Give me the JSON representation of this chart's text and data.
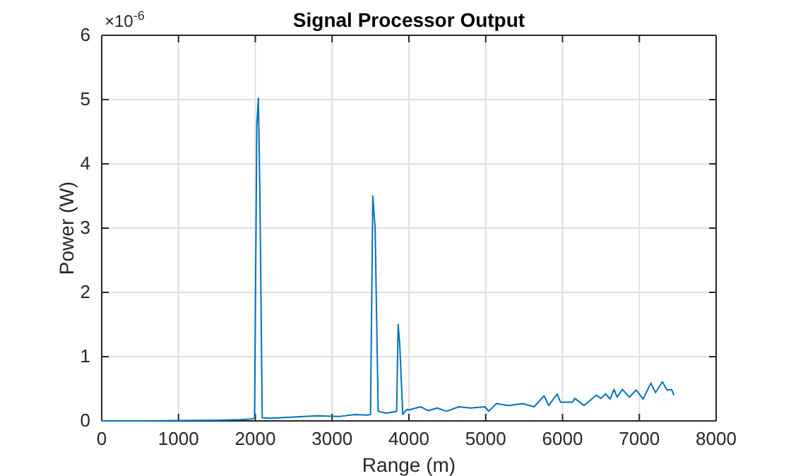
{
  "chart_data": {
    "type": "line",
    "title": "Signal Processor Output",
    "xlabel": "Range (m)",
    "ylabel": "Power (W)",
    "annotations": [
      "×10$^{-6}$"
    ],
    "xlim": [
      0,
      8000
    ],
    "xticks": [
      0,
      1000,
      2000,
      3000,
      4000,
      5000,
      6000,
      7000,
      8000
    ],
    "ylim": [
      0,
      6
    ],
    "yticks": [
      0,
      1,
      2,
      3,
      4,
      5,
      6
    ],
    "grid": true,
    "x": [
      0,
      500,
      1000,
      1500,
      1800,
      1950,
      1990,
      2020,
      2040,
      2060,
      2090,
      2200,
      2500,
      2800,
      3100,
      3300,
      3450,
      3500,
      3530,
      3560,
      3600,
      3700,
      3800,
      3840,
      3860,
      3880,
      3920,
      3950,
      3980,
      4000,
      4150,
      4250,
      4370,
      4490,
      4650,
      4800,
      4990,
      5040,
      5140,
      5300,
      5480,
      5630,
      5760,
      5820,
      5930,
      5975,
      6130,
      6160,
      6280,
      6440,
      6500,
      6560,
      6620,
      6670,
      6710,
      6780,
      6870,
      6960,
      7050,
      7150,
      7210,
      7300,
      7360,
      7420,
      7450
    ],
    "series": [
      {
        "color": "#0072bd",
        "values": [
          0,
          0,
          0.005,
          0.01,
          0.02,
          0.03,
          0.04,
          4.6,
          5.02,
          3.5,
          0.05,
          0.04,
          0.06,
          0.08,
          0.07,
          0.1,
          0.09,
          0.1,
          3.5,
          3.0,
          0.15,
          0.12,
          0.14,
          0.15,
          1.5,
          1.2,
          0.1,
          0.15,
          0.18,
          0.17,
          0.22,
          0.16,
          0.2,
          0.15,
          0.22,
          0.2,
          0.22,
          0.15,
          0.27,
          0.24,
          0.27,
          0.22,
          0.39,
          0.24,
          0.42,
          0.29,
          0.29,
          0.35,
          0.24,
          0.4,
          0.35,
          0.42,
          0.34,
          0.49,
          0.37,
          0.49,
          0.37,
          0.48,
          0.34,
          0.59,
          0.44,
          0.61,
          0.48,
          0.49,
          0.4
        ]
      }
    ]
  }
}
